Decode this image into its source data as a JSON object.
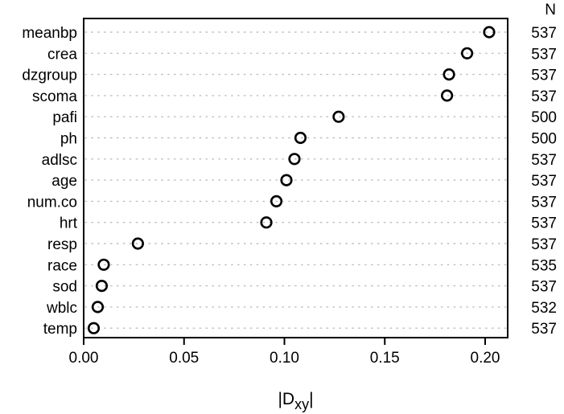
{
  "chart_data": {
    "type": "scatter",
    "subtype": "dot-chart",
    "xlabel": "|D_xy|",
    "xlabel_parts": {
      "pre": "|D",
      "sub": "xy",
      "post": "|"
    },
    "right_column_header": "N",
    "xlim": [
      0,
      0.21
    ],
    "x_ticks": [
      0.0,
      0.05,
      0.1,
      0.15,
      0.2
    ],
    "x_tick_labels": [
      "0.00",
      "0.05",
      "0.10",
      "0.15",
      "0.20"
    ],
    "grid": "dotted-horizontal",
    "marker": "open-circle",
    "rows": [
      {
        "label": "meanbp",
        "value": 0.202,
        "n": "537"
      },
      {
        "label": "crea",
        "value": 0.191,
        "n": "537"
      },
      {
        "label": "dzgroup",
        "value": 0.182,
        "n": "537"
      },
      {
        "label": "scoma",
        "value": 0.181,
        "n": "537"
      },
      {
        "label": "pafi",
        "value": 0.127,
        "n": "500"
      },
      {
        "label": "ph",
        "value": 0.108,
        "n": "500"
      },
      {
        "label": "adlsc",
        "value": 0.105,
        "n": "537"
      },
      {
        "label": "age",
        "value": 0.101,
        "n": "537"
      },
      {
        "label": "num.co",
        "value": 0.096,
        "n": "537"
      },
      {
        "label": "hrt",
        "value": 0.091,
        "n": "537"
      },
      {
        "label": "resp",
        "value": 0.027,
        "n": "537"
      },
      {
        "label": "race",
        "value": 0.01,
        "n": "535"
      },
      {
        "label": "sod",
        "value": 0.009,
        "n": "537"
      },
      {
        "label": "wblc",
        "value": 0.007,
        "n": "532"
      },
      {
        "label": "temp",
        "value": 0.005,
        "n": "537"
      }
    ]
  },
  "colors": {
    "foreground": "#000000",
    "grid": "#bdbdbd",
    "background": "#ffffff"
  }
}
